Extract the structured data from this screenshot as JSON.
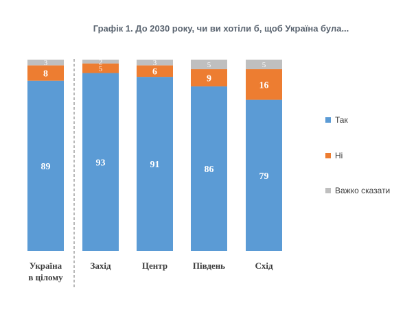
{
  "chart_data": {
    "type": "bar",
    "stacked": true,
    "title": "Графік 1. До 2030 року, чи ви хотіли б, щоб Україна була...",
    "categories": [
      [
        "Україна",
        "в цілому"
      ],
      [
        "Захід"
      ],
      [
        "Центр"
      ],
      [
        "Південь"
      ],
      [
        "Схід"
      ]
    ],
    "series": [
      {
        "name": "Так",
        "color": "#5b9bd5",
        "values": [
          89,
          93,
          91,
          86,
          79
        ]
      },
      {
        "name": "Ні",
        "color": "#ed7d31",
        "values": [
          8,
          5,
          6,
          9,
          16
        ]
      },
      {
        "name": "Важко сказати",
        "color": "#bfbfbf",
        "values": [
          3,
          2,
          3,
          5,
          5
        ]
      }
    ],
    "ylim": [
      0,
      100
    ],
    "grid": false,
    "legend": "right"
  }
}
